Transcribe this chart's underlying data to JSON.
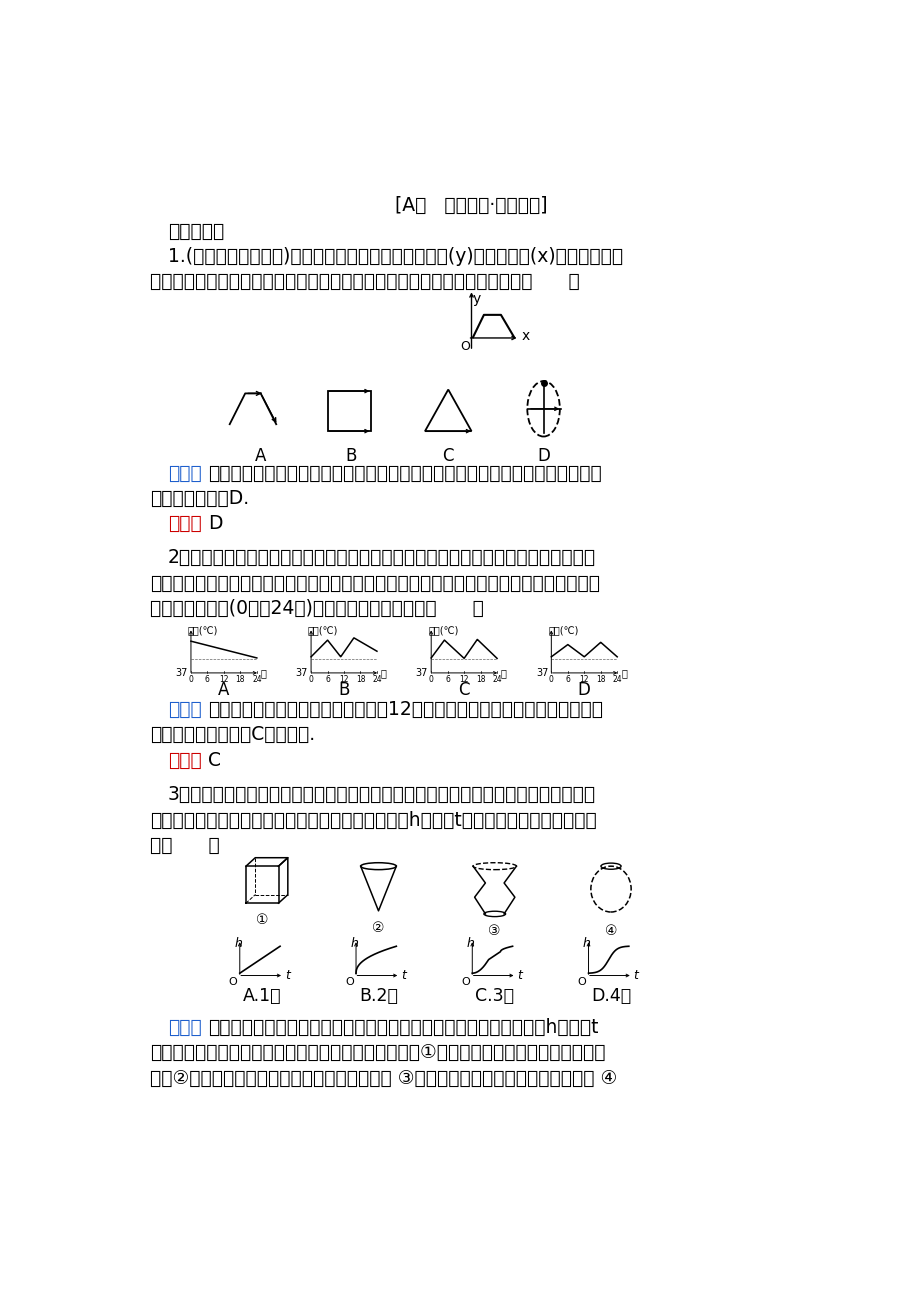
{
  "background_color": "#ffffff",
  "page_width": 9.2,
  "page_height": 13.02,
  "title": "[A组   基础演练·能力提升]",
  "section1": "一、选择题",
  "q1_text1": "1.(浏阳一中高三检测)如图是张大爷晨练时离家的距离(y)与行走时间(x)之间的函数关",
  "q1_text2": "系的图象．若用黑点表示张大爷家的位置，则张大爷散步行走的路线可能是（      ）",
  "jiexi1_label": "解析：",
  "jiexi1_text": "根据图象可得，张大爷先是离家越来越远，后离家距离保持不变，最后慢慢回到",
  "jiexi1_text2": "家，符合的只有D.",
  "da1_label": "答案：",
  "da1_text": "D",
  "q2_text1": "2．某天清晨，小明同学生病了，体温上升，吃过药后感觉好多了，中午时他的体温基",
  "q2_text2": "本正常，但是下午他的体温又开始上升，直到半夜才感觉身上不那么发烫了．下面大致能反",
  "q2_text3": "映出小明这一天(0时～24时)体温的变化情况的图是（      ）",
  "jiexi2_label": "解析：",
  "jiexi2_text": "由题意，清晨体温在上升，吃药后到12点下降至体温基本正常，下午又上升，",
  "jiexi2_text2": "然后再又下降，只有C选项符合.",
  "da2_label": "答案：",
  "da2_text": "C",
  "q3_text1": "3．下面的四个容器高度都相同，将水从容器顶部一个孔中以相同的速度注入其中，注",
  "q3_text2": "满为止．用下面对应的图象表示该容器中水面的高度h和时间t之间的关系，其中不正确的",
  "q3_text3": "有（      ）",
  "jiexi3_label": "解析：",
  "jiexi3_text1": "将水从容器顶部一个孔中以相同的速度注入其中，容器中水面的高度h和时间t",
  "jiexi3_text2": "之间的关系可以从高度随时间的变化率上反映出来，图①应该是匀速的，故对应的图象不正",
  "jiexi3_text3": "确，②中的变化率应该是越来越慢的，图象正确 ③中的变化规律是先慢后快，图象正确 ④"
}
